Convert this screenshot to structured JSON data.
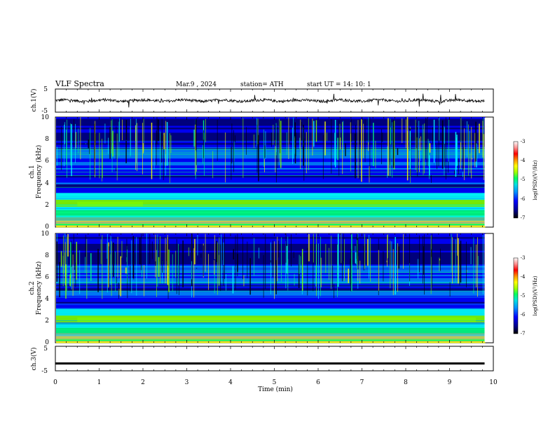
{
  "header": {
    "title": "VLF  Spectra",
    "date": "Mar.9  , 2024",
    "station": "station= ATH",
    "start_ut": "start  UT  =   14: 10: 1"
  },
  "colors": {
    "spectrogram_colormap": [
      "#000000",
      "#000080",
      "#0000ff",
      "#0080ff",
      "#00ffff",
      "#00ff80",
      "#80ff00",
      "#ffff00",
      "#ff8000",
      "#ff0000",
      "#ffc0c0",
      "#ffffff"
    ],
    "trace": "#000000",
    "axes": "#000000"
  },
  "chart_data": [
    {
      "type": "line",
      "name": "ch1-waveform",
      "ylabel": "ch.1(V)",
      "ylim": [
        -5,
        5
      ],
      "yticks": [
        "5",
        "-5"
      ],
      "x_range_min": [
        0,
        9.8
      ],
      "description_values": {
        "baseline": 0,
        "typical_amplitude": 1.0,
        "spike_max": 3,
        "spike_min": -3
      }
    },
    {
      "type": "heatmap",
      "name": "ch1-spectrogram",
      "ylabel": "ch.1\nFrequency  (kHz)",
      "ylim": [
        0,
        10
      ],
      "yticks": [
        "0",
        "2",
        "4",
        "6",
        "8",
        "10"
      ],
      "x_range_min": [
        0,
        9.8
      ],
      "colorbar": {
        "label": "log(PSD)(V²/Hz)",
        "range": [
          -7,
          -3
        ],
        "ticks": [
          "-3",
          "-4",
          "-5",
          "-6",
          "-7"
        ]
      },
      "features": {
        "strong_band_khz": [
          1.8,
          2.4
        ],
        "quiet_band_khz": [
          3,
          5
        ],
        "impulsive_lines": true
      }
    },
    {
      "type": "heatmap",
      "name": "ch2-spectrogram",
      "ylabel": "ch.2\nFrequency  (kHz)",
      "ylim": [
        0,
        10
      ],
      "yticks": [
        "0",
        "2",
        "4",
        "6",
        "8",
        "10"
      ],
      "x_range_min": [
        0,
        9.8
      ],
      "colorbar": {
        "label": "log(PSD)(V²/Hz)",
        "range": [
          -7,
          -3
        ],
        "ticks": [
          "-3",
          "-4",
          "-5",
          "-6",
          "-7"
        ]
      },
      "features": {
        "strong_band_khz": [
          1.8,
          2.4
        ],
        "impulsive_lines": true
      }
    },
    {
      "type": "line",
      "name": "ch3-waveform",
      "ylabel": "ch.3(V)",
      "ylim": [
        -5,
        5
      ],
      "yticks": [
        "5",
        "-5"
      ],
      "x_range_min": [
        0,
        9.8
      ],
      "description_values": {
        "constant_level": -2
      }
    }
  ],
  "x_axis": {
    "label": "Time  (min)",
    "range": [
      0,
      10
    ],
    "ticks": [
      "0",
      "1",
      "2",
      "3",
      "4",
      "5",
      "6",
      "7",
      "8",
      "9",
      "10"
    ]
  }
}
